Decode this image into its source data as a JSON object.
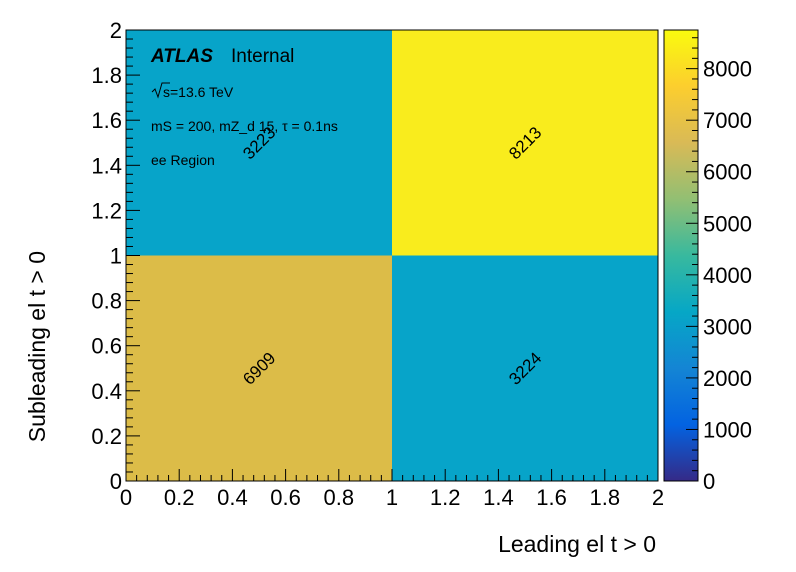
{
  "chart_data": {
    "type": "heatmap",
    "xlabel": "Leading el t > 0",
    "ylabel": "Subleading el t > 0",
    "xlim": [
      0,
      2
    ],
    "ylim": [
      0,
      2
    ],
    "x_ticks": [
      "0",
      "0.2",
      "0.4",
      "0.6",
      "0.8",
      "1",
      "1.2",
      "1.4",
      "1.6",
      "1.8",
      "2"
    ],
    "y_ticks": [
      "0",
      "0.2",
      "0.4",
      "0.6",
      "0.8",
      "1",
      "1.2",
      "1.4",
      "1.6",
      "1.8",
      "2"
    ],
    "x_bins": [
      [
        0,
        1
      ],
      [
        1,
        2
      ]
    ],
    "y_bins": [
      [
        0,
        1
      ],
      [
        1,
        2
      ]
    ],
    "cells": [
      {
        "x": [
          0,
          1
        ],
        "y": [
          0,
          1
        ],
        "value": 6909,
        "label": "6909",
        "color": "#dcbc48"
      },
      {
        "x": [
          1,
          2
        ],
        "y": [
          0,
          1
        ],
        "value": 3224,
        "label": "3224",
        "color": "#07a4c9"
      },
      {
        "x": [
          0,
          1
        ],
        "y": [
          1,
          2
        ],
        "value": 3223,
        "label": "3223",
        "color": "#07a4c9"
      },
      {
        "x": [
          1,
          2
        ],
        "y": [
          1,
          2
        ],
        "value": 8213,
        "label": "8213",
        "color": "#f9ec1d"
      }
    ],
    "colorbar": {
      "range": [
        0,
        8750
      ],
      "ticks": [
        "0",
        "1000",
        "2000",
        "3000",
        "4000",
        "5000",
        "6000",
        "7000",
        "8000"
      ],
      "gradient": [
        "#352a87",
        "#0363e1",
        "#1485d4",
        "#06a7c6",
        "#38b99e",
        "#92bf73",
        "#d9ba56",
        "#fcce2e",
        "#f9fb0e"
      ]
    },
    "annotations": {
      "experiment": "ATLAS",
      "status": "Internal",
      "energy": "s=13.6 TeV",
      "model": "mS = 200, mZ_d 15, τ = 0.1ns",
      "region": "ee Region"
    }
  }
}
